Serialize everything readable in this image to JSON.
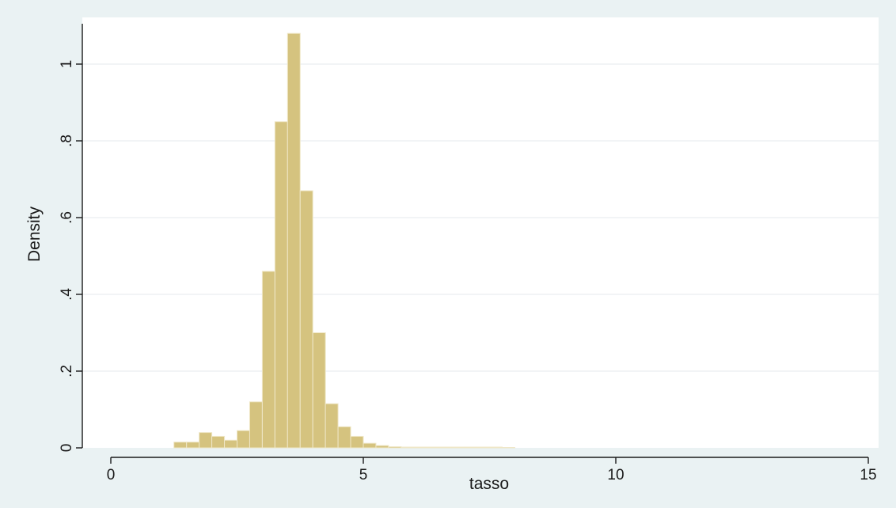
{
  "chart_data": {
    "type": "bar",
    "subtype": "histogram",
    "title": "",
    "xlabel": "tasso",
    "ylabel": "Density",
    "xlim": [
      -0.4,
      15.2
    ],
    "ylim": [
      0,
      1.1
    ],
    "x_ticks": [
      0,
      5,
      10,
      15
    ],
    "x_tick_labels": [
      "0",
      "5",
      "10",
      "15"
    ],
    "y_ticks": [
      0,
      0.2,
      0.4,
      0.6,
      0.8,
      1
    ],
    "y_tick_labels": [
      "0",
      ".2",
      ".4",
      ".6",
      ".8",
      "1"
    ],
    "grid": "horizontal",
    "legend": "none",
    "bin_width": 0.25,
    "bins": [
      {
        "x0": 1.25,
        "density": 0.015
      },
      {
        "x0": 1.5,
        "density": 0.015
      },
      {
        "x0": 1.75,
        "density": 0.04
      },
      {
        "x0": 2.0,
        "density": 0.03
      },
      {
        "x0": 2.25,
        "density": 0.02
      },
      {
        "x0": 2.5,
        "density": 0.045
      },
      {
        "x0": 2.75,
        "density": 0.12
      },
      {
        "x0": 3.0,
        "density": 0.46
      },
      {
        "x0": 3.25,
        "density": 0.85
      },
      {
        "x0": 3.5,
        "density": 1.08
      },
      {
        "x0": 3.75,
        "density": 0.67
      },
      {
        "x0": 4.0,
        "density": 0.3
      },
      {
        "x0": 4.25,
        "density": 0.115
      },
      {
        "x0": 4.5,
        "density": 0.055
      },
      {
        "x0": 4.75,
        "density": 0.03
      },
      {
        "x0": 5.0,
        "density": 0.012
      },
      {
        "x0": 5.25,
        "density": 0.006
      },
      {
        "x0": 5.5,
        "density": 0.003
      },
      {
        "x0": 5.75,
        "density": 0.002
      },
      {
        "x0": 6.0,
        "density": 0.002
      },
      {
        "x0": 6.25,
        "density": 0.002
      },
      {
        "x0": 6.5,
        "density": 0.002
      },
      {
        "x0": 6.75,
        "density": 0.002
      },
      {
        "x0": 7.0,
        "density": 0.002
      },
      {
        "x0": 7.25,
        "density": 0.002
      },
      {
        "x0": 7.5,
        "density": 0.002
      },
      {
        "x0": 7.75,
        "density": 0.001
      }
    ],
    "colors": {
      "background": "#eaf2f3",
      "plot_area": "#ffffff",
      "bar_fill": "#d5c37f",
      "bar_stroke": "#efe7c7",
      "grid": "#e9eef1",
      "axis": "#1a1a1a"
    }
  }
}
